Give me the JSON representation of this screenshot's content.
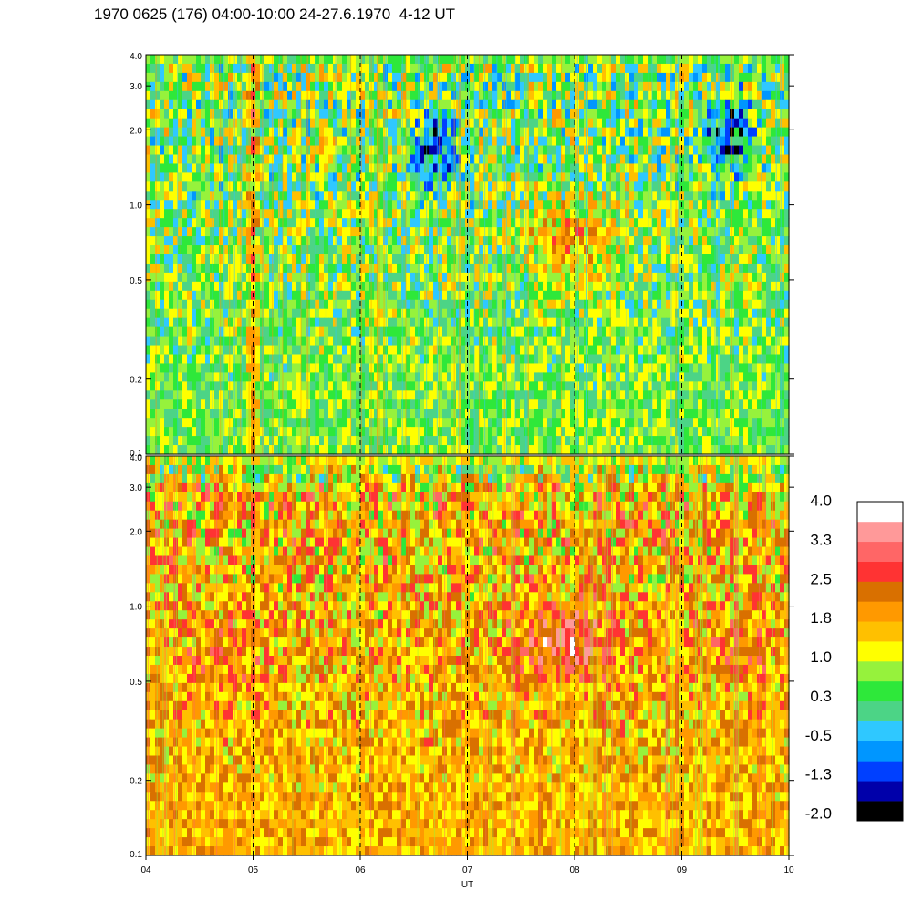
{
  "title": "1970 0625 (176) 04:00-10:00 24-27.6.1970  4-12 UT",
  "chart_data": {
    "type": "heatmap",
    "xlabel": "UT",
    "x_ticks": [
      "04",
      "05",
      "06",
      "07",
      "08",
      "09",
      "10"
    ],
    "x_range": [
      4,
      10
    ],
    "dashed_lines_x": [
      5,
      6,
      7,
      8,
      9
    ],
    "y_scale": "log",
    "y_range": [
      0.1,
      4.0
    ],
    "y_ticks": [
      {
        "value": 0.1,
        "label": "0.1"
      },
      {
        "value": 0.2,
        "label": "0.2"
      },
      {
        "value": 0.5,
        "label": "0.5"
      },
      {
        "value": 1.0,
        "label": "1.0"
      },
      {
        "value": 2.0,
        "label": "2.0"
      },
      {
        "value": 3.0,
        "label": "3.0"
      },
      {
        "value": 4.0,
        "label": "4.0"
      }
    ],
    "panels": [
      {
        "id": "upper",
        "dominant_level": 0.6,
        "features": [
          {
            "kind": "blob",
            "x": 7.97,
            "y": 0.72,
            "level": 1.9
          },
          {
            "kind": "streak",
            "x": 5.0,
            "level": 2.2
          },
          {
            "kind": "low",
            "x": 6.7,
            "y": 1.6,
            "level": -0.8
          },
          {
            "kind": "low",
            "x": 9.45,
            "y": 1.9,
            "level": -0.9
          }
        ]
      },
      {
        "id": "lower",
        "dominant_level": 1.7,
        "features": [
          {
            "kind": "blob",
            "x": 7.9,
            "y": 0.72,
            "level": 2.9
          },
          {
            "kind": "blob",
            "x": 4.7,
            "y": 0.6,
            "level": 2.2
          },
          {
            "kind": "blob",
            "x": 9.5,
            "y": 0.7,
            "level": 2.2
          }
        ]
      }
    ],
    "colorbar": {
      "tick_labels": [
        "4.0",
        "3.3",
        "2.5",
        "1.8",
        "1.0",
        "0.3",
        "-0.5",
        "-1.3",
        "-2.0"
      ],
      "range": [
        -2.0,
        4.0
      ],
      "colors": [
        "#000000",
        "#0000aa",
        "#0040ff",
        "#0096ff",
        "#2fc8ff",
        "#4cd486",
        "#2ee83a",
        "#96f23c",
        "#ffff00",
        "#ffc000",
        "#ff9900",
        "#d97000",
        "#ff3333",
        "#ff6666",
        "#ff9999",
        "#ffffff"
      ]
    }
  }
}
